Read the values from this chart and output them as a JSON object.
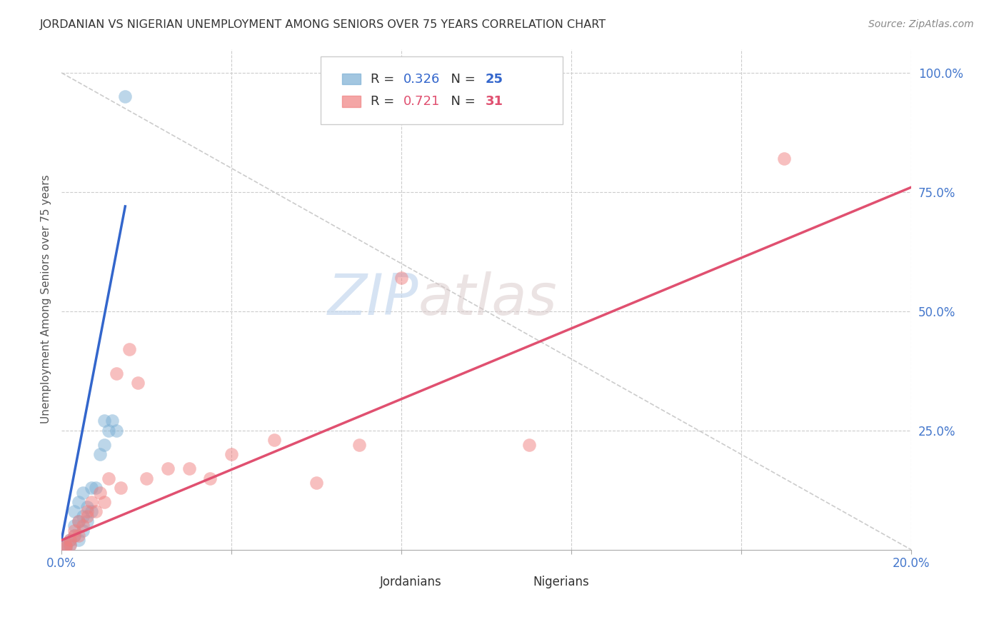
{
  "title": "JORDANIAN VS NIGERIAN UNEMPLOYMENT AMONG SENIORS OVER 75 YEARS CORRELATION CHART",
  "source": "Source: ZipAtlas.com",
  "ylabel": "Unemployment Among Seniors over 75 years",
  "x_axis_min": 0.0,
  "x_axis_max": 0.2,
  "y_axis_min": 0.0,
  "y_axis_max": 1.05,
  "jordanian_R": 0.326,
  "jordanian_N": 25,
  "nigerian_R": 0.721,
  "nigerian_N": 31,
  "jordanian_color": "#7bafd4",
  "nigerian_color": "#f08080",
  "trendline_jordanian_color": "#3366cc",
  "trendline_nigerian_color": "#e05070",
  "diagonal_color": "#cccccc",
  "background_color": "#ffffff",
  "grid_color": "#cccccc",
  "axis_label_color": "#4477cc",
  "title_color": "#333333",
  "watermark_zip": "ZIP",
  "watermark_atlas": "atlas",
  "legend_label_jordanians": "Jordanians",
  "legend_label_nigerians": "Nigerians",
  "jordanian_scatter_x": [
    0.001,
    0.001,
    0.002,
    0.002,
    0.003,
    0.003,
    0.003,
    0.004,
    0.004,
    0.004,
    0.005,
    0.005,
    0.005,
    0.006,
    0.006,
    0.007,
    0.007,
    0.008,
    0.009,
    0.01,
    0.01,
    0.011,
    0.012,
    0.013,
    0.015
  ],
  "jordanian_scatter_y": [
    0.005,
    0.01,
    0.01,
    0.02,
    0.03,
    0.05,
    0.08,
    0.02,
    0.06,
    0.1,
    0.04,
    0.07,
    0.12,
    0.06,
    0.09,
    0.08,
    0.13,
    0.13,
    0.2,
    0.22,
    0.27,
    0.25,
    0.27,
    0.25,
    0.95
  ],
  "nigerian_scatter_x": [
    0.001,
    0.001,
    0.002,
    0.002,
    0.003,
    0.003,
    0.004,
    0.004,
    0.005,
    0.006,
    0.006,
    0.007,
    0.008,
    0.009,
    0.01,
    0.011,
    0.013,
    0.014,
    0.016,
    0.018,
    0.02,
    0.025,
    0.03,
    0.035,
    0.04,
    0.05,
    0.06,
    0.07,
    0.08,
    0.11,
    0.17
  ],
  "nigerian_scatter_y": [
    0.005,
    0.01,
    0.01,
    0.02,
    0.03,
    0.04,
    0.03,
    0.06,
    0.05,
    0.07,
    0.08,
    0.1,
    0.08,
    0.12,
    0.1,
    0.15,
    0.37,
    0.13,
    0.42,
    0.35,
    0.15,
    0.17,
    0.17,
    0.15,
    0.2,
    0.23,
    0.14,
    0.22,
    0.57,
    0.22,
    0.82
  ],
  "jordanian_trend_x": [
    0.0,
    0.015
  ],
  "jordanian_trend_y": [
    0.02,
    0.72
  ],
  "nigerian_trend_x": [
    0.0,
    0.2
  ],
  "nigerian_trend_y": [
    0.02,
    0.76
  ],
  "scatter_size": 180,
  "scatter_alpha": 0.5
}
